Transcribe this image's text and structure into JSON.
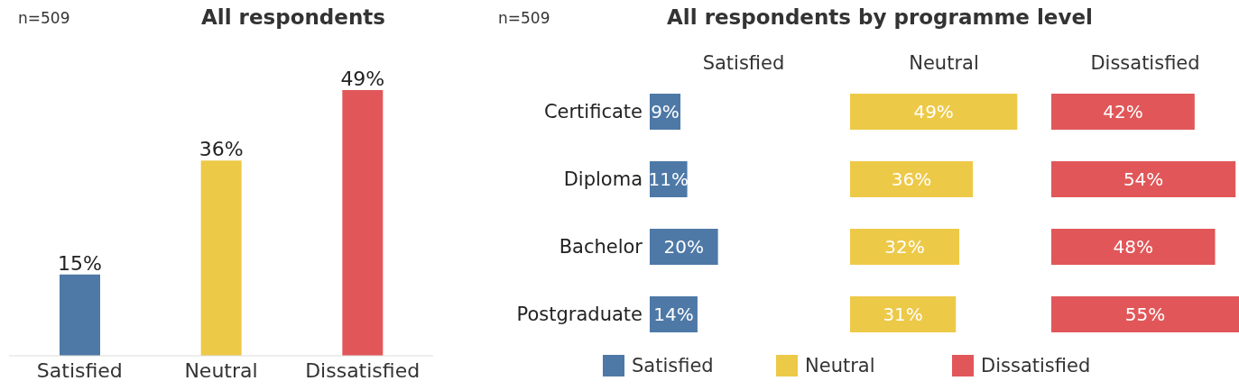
{
  "chart_data": [
    {
      "type": "bar",
      "title": "All respondents",
      "annotations": [
        "n=509"
      ],
      "categories": [
        "Satisfied",
        "Neutral",
        "Dissatisfied"
      ],
      "values": [
        15,
        36,
        49
      ],
      "colors": [
        "#4e79a7",
        "#edc948",
        "#e15759"
      ],
      "value_labels": [
        "15%",
        "36%",
        "49%"
      ]
    },
    {
      "type": "bar",
      "orientation": "horizontal",
      "title": "All respondents by programme level",
      "annotations": [
        "n=509"
      ],
      "categories": [
        "Certificate",
        "Diploma",
        "Bachelor",
        "Postgraduate"
      ],
      "legend": "bottom",
      "tick_labels": "y",
      "series": [
        {
          "name": "Satisfied",
          "color": "#4e79a7",
          "values": [
            9,
            11,
            20,
            14
          ],
          "value_labels": [
            "9%",
            "11%",
            "20%",
            "14%"
          ]
        }
      ]
    },
    {
      "type": "bar",
      "orientation": "horizontal",
      "categories": [
        null,
        null,
        null,
        null
      ],
      "legend": "bottom",
      "tick_labels": false,
      "series": [
        {
          "name": "Neutral",
          "color": "#edc948",
          "values": [
            49,
            36,
            32,
            31
          ],
          "value_labels": [
            "49%",
            "36%",
            "32%",
            "31%"
          ]
        }
      ]
    },
    {
      "type": "bar",
      "orientation": "horizontal",
      "categories": [
        null,
        null,
        null,
        null
      ],
      "legend": "bottom",
      "tick_labels": false,
      "series": [
        {
          "name": "Dissatisfied",
          "color": "#e15759",
          "values": [
            42,
            54,
            48,
            55
          ],
          "value_labels": [
            "42%",
            "54%",
            "48%",
            "55%"
          ]
        }
      ]
    }
  ]
}
